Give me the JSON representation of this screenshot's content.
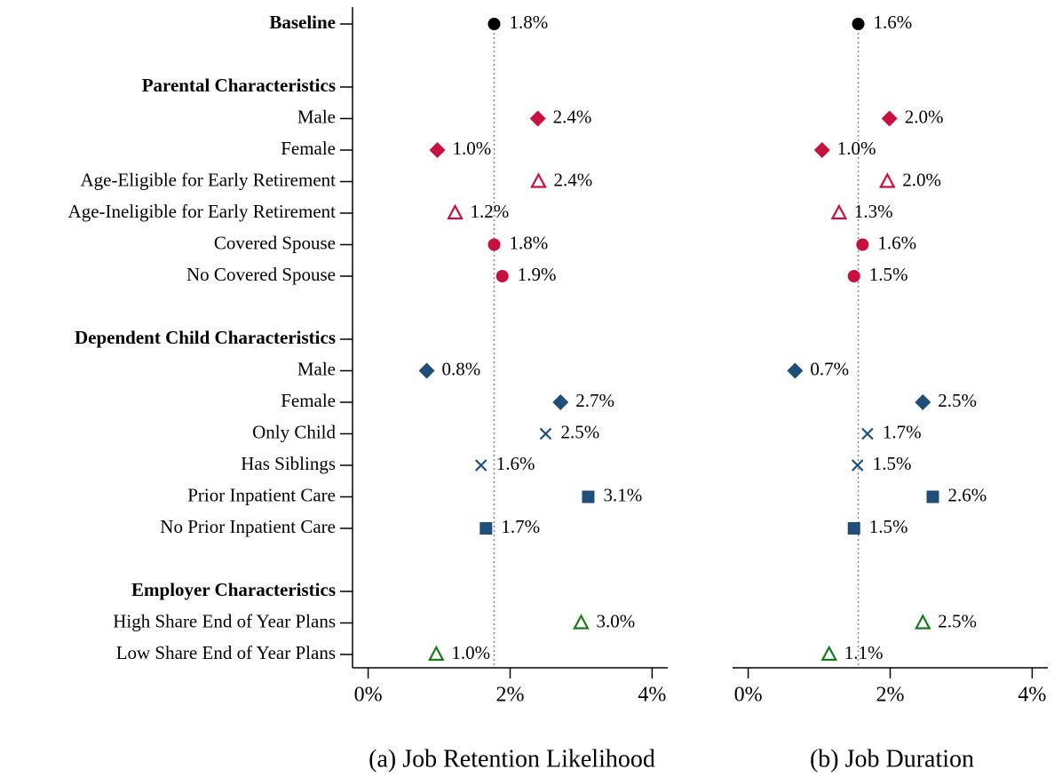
{
  "chart_data": {
    "type": "dot",
    "categories": [
      "Baseline",
      null,
      "Parental Characteristics",
      "Male",
      "Female",
      "Age-Eligible for Early Retirement",
      "Age-Ineligible for Early Retirement",
      "Covered Spouse",
      "No Covered Spouse",
      null,
      "Dependent Child Characteristics",
      "Male",
      "Female",
      "Only Child",
      "Has Siblings",
      "Prior Inpatient Care",
      "No Prior Inpatient Care",
      null,
      "Employer Characteristics",
      "High Share End of Year Plans",
      "Low Share End of Year Plans"
    ],
    "bold_categories": [
      0,
      2,
      10,
      18
    ],
    "markers": [
      "circle",
      null,
      null,
      "diamond",
      "diamond",
      "triangle",
      "triangle",
      "circle",
      "circle",
      null,
      null,
      "diamond",
      "diamond",
      "x",
      "x",
      "square",
      "square",
      null,
      null,
      "triangle",
      "triangle"
    ],
    "colors": [
      "#000000",
      null,
      null,
      "#c8103e",
      "#c8103e",
      "#c8103e",
      "#c8103e",
      "#c8103e",
      "#c8103e",
      null,
      null,
      "#1f4e79",
      "#1f4e79",
      "#1f4e79",
      "#1f4e79",
      "#1f4e79",
      "#1f4e79",
      null,
      null,
      "#1a7a1a",
      "#1a7a1a"
    ],
    "panels": [
      {
        "title": "(a) Job Retention Likelihood",
        "values": [
          1.775,
          null,
          null,
          2.39,
          0.975,
          2.4,
          1.225,
          1.775,
          1.89,
          null,
          null,
          0.825,
          2.71,
          2.5,
          1.59,
          3.1,
          1.66,
          null,
          null,
          3.0,
          0.96
        ],
        "value_labels": [
          "1.8%",
          null,
          null,
          "2.4%",
          "1.0%",
          "2.4%",
          "1.2%",
          "1.8%",
          "1.9%",
          null,
          null,
          "0.8%",
          "2.7%",
          "2.5%",
          "1.6%",
          "3.1%",
          "1.7%",
          null,
          null,
          "3.0%",
          "1.0%"
        ],
        "xlim": [
          -0.22,
          4.22
        ],
        "xticks": [
          {
            "value": 0,
            "label": "0%"
          },
          {
            "value": 2,
            "label": "2%"
          },
          {
            "value": 4,
            "label": "4%"
          }
        ]
      },
      {
        "title": "(b) Job Duration",
        "values": [
          1.55,
          null,
          null,
          1.99,
          1.04,
          1.96,
          1.28,
          1.61,
          1.49,
          null,
          null,
          0.66,
          2.46,
          1.68,
          1.54,
          2.6,
          1.49,
          null,
          null,
          2.46,
          1.14
        ],
        "value_labels": [
          "1.6%",
          null,
          null,
          "2.0%",
          "1.0%",
          "2.0%",
          "1.3%",
          "1.6%",
          "1.5%",
          null,
          null,
          "0.7%",
          "2.5%",
          "1.7%",
          "1.5%",
          "2.6%",
          "1.5%",
          null,
          null,
          "2.5%",
          "1.1%"
        ],
        "xlim": [
          -0.22,
          4.22
        ],
        "xticks": [
          {
            "value": 0,
            "label": "0%"
          },
          {
            "value": 2,
            "label": "2%"
          },
          {
            "value": 4,
            "label": "4%"
          }
        ]
      }
    ]
  }
}
